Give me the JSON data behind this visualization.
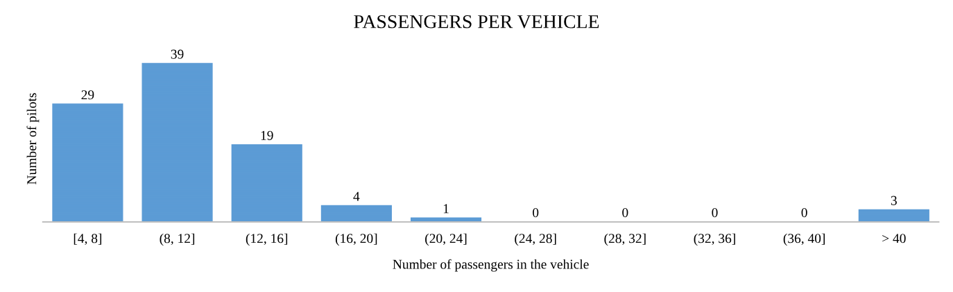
{
  "chart_data": {
    "type": "bar",
    "title": "PASSENGERS PER VEHICLE",
    "xlabel": "Number of passengers in the vehicle",
    "ylabel": "Number of pilots",
    "categories": [
      "[4, 8]",
      "(8, 12]",
      "(12, 16]",
      "(16, 20]",
      "(20, 24]",
      "(24, 28]",
      "(28, 32]",
      "(32, 36]",
      "(36, 40]",
      "> 40"
    ],
    "values": [
      29,
      39,
      19,
      4,
      1,
      0,
      0,
      0,
      0,
      3
    ],
    "color": "#5b9bd5",
    "data_labels": true,
    "grid": false,
    "legend": false
  }
}
